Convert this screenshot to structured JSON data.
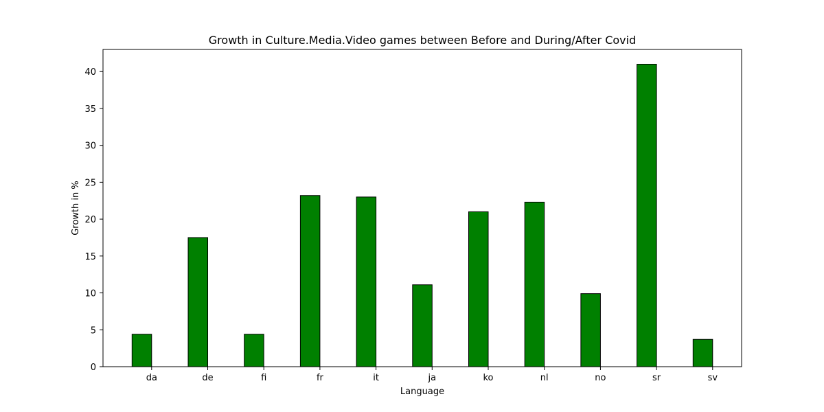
{
  "chart_data": {
    "type": "bar",
    "title": "Growth in Culture.Media.Video games between Before and During/After Covid",
    "xlabel": "Language",
    "ylabel": "Growth in %",
    "categories": [
      "da",
      "de",
      "fi",
      "fr",
      "it",
      "ja",
      "ko",
      "nl",
      "no",
      "sr",
      "sv"
    ],
    "values": [
      4.4,
      17.5,
      4.4,
      23.2,
      23.0,
      11.1,
      21.0,
      22.3,
      9.9,
      41.0,
      3.7
    ],
    "yticks": [
      0,
      5,
      10,
      15,
      20,
      25,
      30,
      35,
      40
    ],
    "ylim": [
      0,
      43
    ],
    "grid": false,
    "colors": {
      "bar": "#008000",
      "bar_edge": "#000000",
      "axes": "#000000"
    }
  }
}
